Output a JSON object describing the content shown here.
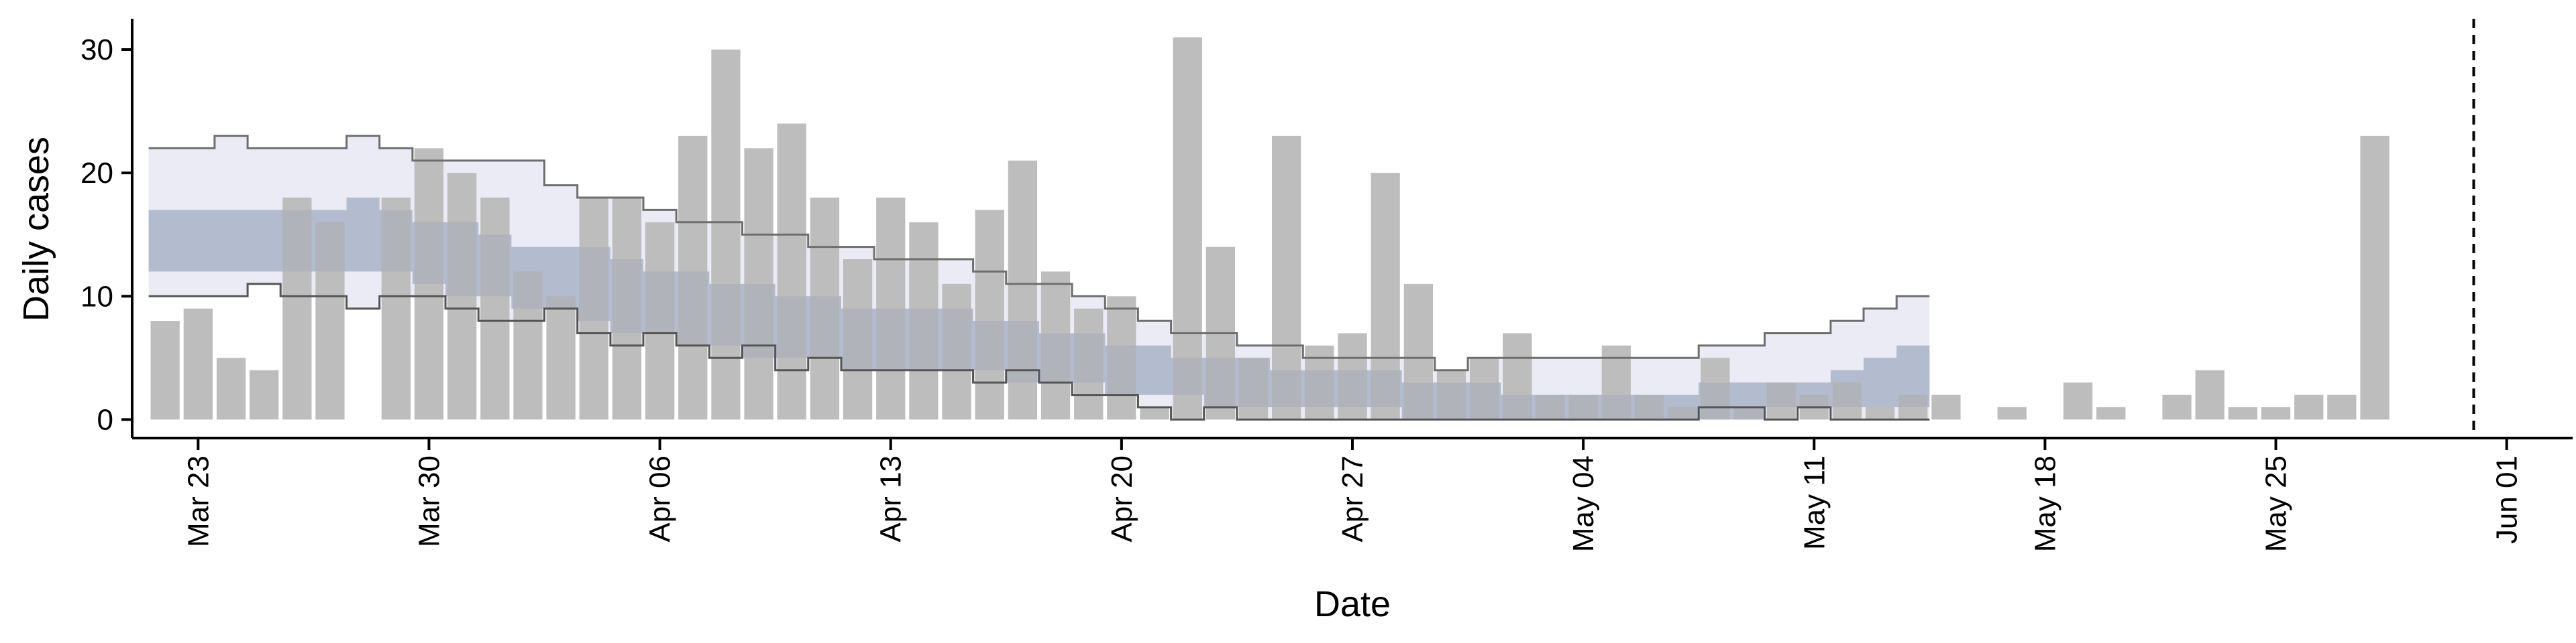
{
  "chart_data": {
    "type": "bar",
    "xlabel": "Date",
    "ylabel": "Daily cases",
    "x_start": "2020-03-22",
    "x_range": [
      "2020-03-21",
      "2020-06-03"
    ],
    "ylim": [
      -1.5,
      32.5
    ],
    "y_ticks": [
      0,
      10,
      20,
      30
    ],
    "x_ticks": [
      {
        "date": "2020-03-23",
        "label": "Mar 23"
      },
      {
        "date": "2020-03-30",
        "label": "Mar 30"
      },
      {
        "date": "2020-04-06",
        "label": "Apr 06"
      },
      {
        "date": "2020-04-13",
        "label": "Apr 13"
      },
      {
        "date": "2020-04-20",
        "label": "Apr 20"
      },
      {
        "date": "2020-04-27",
        "label": "Apr 27"
      },
      {
        "date": "2020-05-04",
        "label": "May 04"
      },
      {
        "date": "2020-05-11",
        "label": "May 11"
      },
      {
        "date": "2020-05-18",
        "label": "May 18"
      },
      {
        "date": "2020-05-25",
        "label": "May 25"
      },
      {
        "date": "2020-06-01",
        "label": "Jun 01"
      }
    ],
    "grid": false,
    "bar_color": "#bdbdbd",
    "bars": [
      8,
      9,
      5,
      4,
      18,
      16,
      0,
      18,
      22,
      20,
      18,
      12,
      10,
      18,
      18,
      16,
      23,
      30,
      22,
      24,
      18,
      13,
      18,
      16,
      11,
      17,
      21,
      12,
      9,
      10,
      1,
      31,
      14,
      5,
      23,
      6,
      7,
      20,
      11,
      4,
      5,
      7,
      2,
      2,
      6,
      2,
      1,
      5,
      1,
      3,
      2,
      3,
      1,
      2,
      2,
      0,
      1,
      0,
      3,
      1,
      0,
      2,
      4,
      1,
      1,
      2,
      2,
      23
    ],
    "nowcast_start": "2020-03-22",
    "upper90": [
      22,
      22,
      23,
      22,
      22,
      22,
      23,
      22,
      21,
      21,
      21,
      21,
      19,
      18,
      18,
      17,
      16,
      16,
      15,
      15,
      14,
      14,
      13,
      13,
      13,
      12,
      11,
      11,
      10,
      9,
      8,
      7,
      7,
      6,
      6,
      5,
      5,
      5,
      5,
      4,
      5,
      5,
      5,
      5,
      5,
      5,
      5,
      6,
      6,
      7,
      7,
      8,
      9,
      10
    ],
    "upper50": [
      17,
      17,
      17,
      17,
      17,
      17,
      18,
      17,
      16,
      16,
      15,
      14,
      14,
      14,
      13,
      12,
      12,
      11,
      11,
      10,
      10,
      9,
      9,
      9,
      9,
      8,
      8,
      7,
      7,
      6,
      6,
      5,
      5,
      5,
      4,
      4,
      4,
      4,
      3,
      3,
      3,
      2,
      2,
      2,
      2,
      2,
      2,
      3,
      3,
      3,
      3,
      4,
      5,
      6
    ],
    "lower50": [
      12,
      12,
      12,
      12,
      12,
      12,
      12,
      12,
      11,
      10,
      10,
      9,
      9,
      8,
      7,
      7,
      6,
      6,
      5,
      5,
      5,
      4,
      4,
      4,
      4,
      4,
      3,
      3,
      3,
      2,
      2,
      2,
      1,
      1,
      1,
      1,
      1,
      1,
      0,
      0,
      0,
      0,
      0,
      0,
      0,
      0,
      0,
      0,
      0,
      1,
      1,
      1,
      1,
      1
    ],
    "lower90": [
      10,
      10,
      10,
      11,
      10,
      10,
      9,
      10,
      10,
      9,
      8,
      8,
      9,
      7,
      6,
      7,
      6,
      5,
      6,
      4,
      5,
      4,
      4,
      4,
      4,
      3,
      4,
      3,
      2,
      2,
      1,
      0,
      1,
      0,
      0,
      0,
      0,
      0,
      0,
      0,
      0,
      0,
      0,
      0,
      0,
      0,
      0,
      1,
      1,
      0,
      1,
      0,
      0,
      0
    ],
    "band_outer_color": "#e6e8f2",
    "band_inner_color": "#b3bdd6",
    "band_overlap_color": "#9aa1b5",
    "vline_date": "2020-05-31"
  }
}
